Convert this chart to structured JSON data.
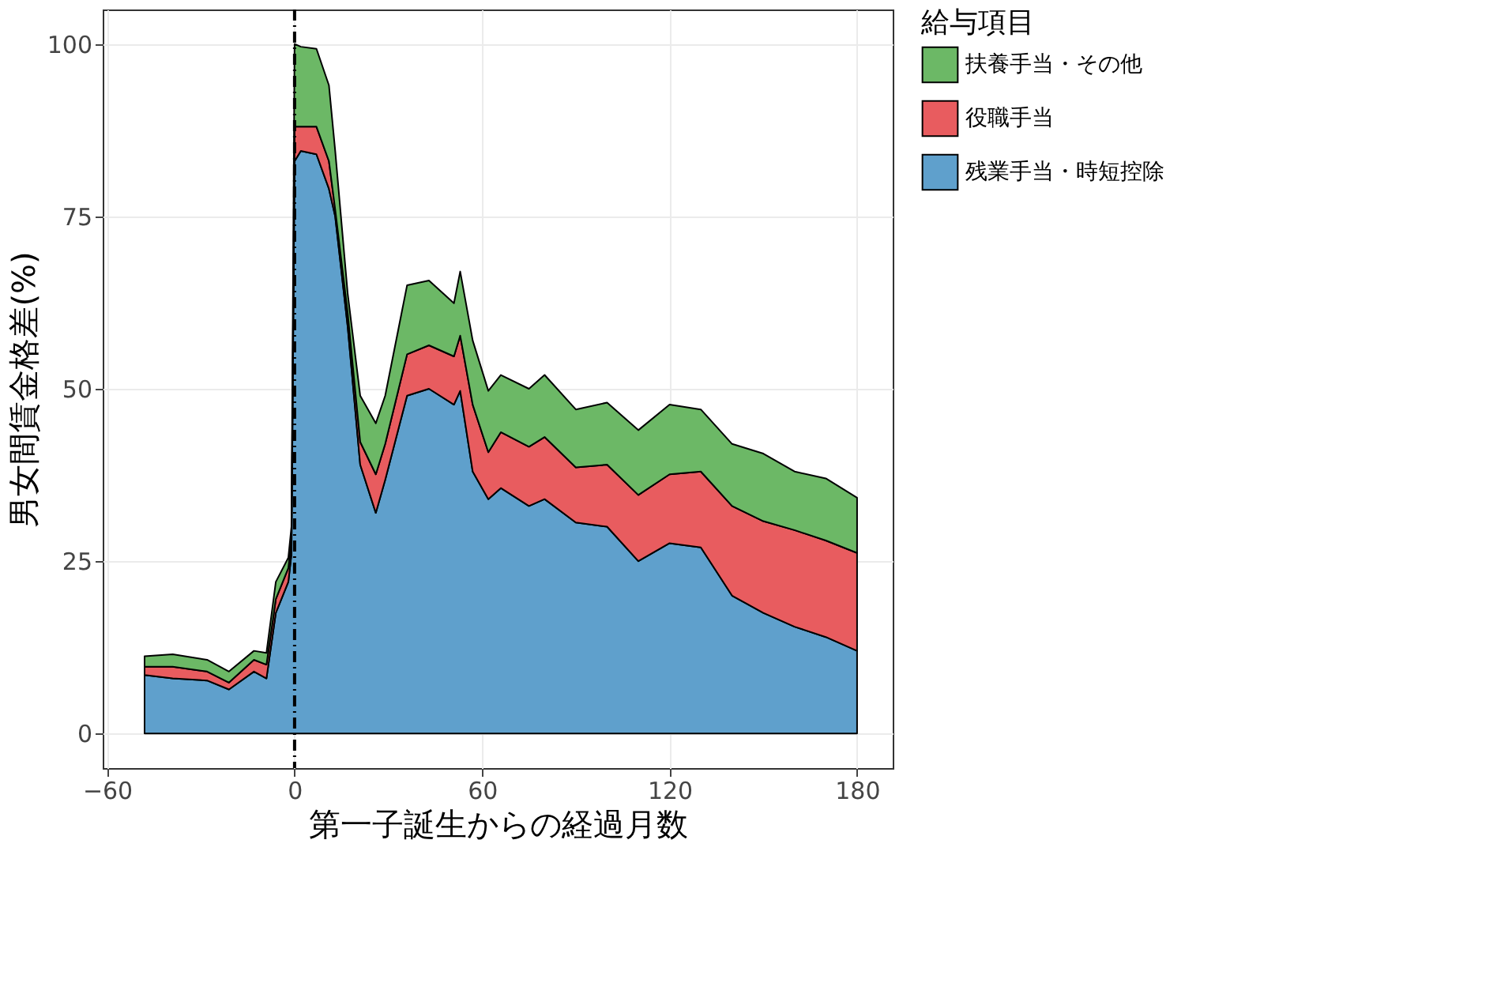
{
  "chart_data": {
    "type": "area",
    "stacked": true,
    "xlabel": "第一子誕生からの経過月数",
    "ylabel": "男女間賃金格差(%)",
    "legend_title": "給与項目",
    "x": [
      -48,
      -39,
      -28,
      -21,
      -13,
      -9,
      -6,
      -2,
      -1,
      0,
      2,
      7,
      11,
      13,
      17,
      21,
      26,
      29,
      36,
      43,
      51,
      53,
      57,
      62,
      66,
      75,
      80,
      90,
      100,
      110,
      120,
      130,
      140,
      150,
      160,
      170,
      180
    ],
    "series": [
      {
        "name": "残業手当・時短控除",
        "color": "#5fa0cc",
        "values": [
          8.5,
          8,
          7.7,
          6.4,
          9,
          8,
          17.5,
          22,
          26,
          83,
          84.5,
          84,
          79,
          75,
          59,
          39,
          32,
          36.8,
          49,
          50,
          47.7,
          49.7,
          38,
          34,
          35.6,
          33,
          34,
          30.6,
          30,
          25,
          27.6,
          27,
          20,
          17.5,
          15.5,
          14,
          12
        ]
      },
      {
        "name": "役職手当",
        "color": "#e85c5f",
        "values": [
          1.2,
          1.7,
          1.3,
          1.0,
          1.7,
          2.0,
          2.0,
          2.0,
          2.0,
          5,
          3.5,
          4,
          4,
          1,
          2,
          3.3,
          5.6,
          5.2,
          6,
          6.3,
          7,
          8,
          9.7,
          6.8,
          8.1,
          8.6,
          9,
          8,
          9,
          9.6,
          10,
          11,
          13,
          13.3,
          14,
          14,
          14.2
        ]
      },
      {
        "name": "扶養手当・その他",
        "color": "#6cb866",
        "values": [
          1.5,
          1.8,
          1.7,
          1.6,
          1.3,
          1.7,
          2.5,
          1.5,
          2,
          12,
          11.6,
          11.3,
          11,
          8.5,
          2.8,
          6.7,
          7.4,
          7,
          10,
          9.4,
          7.7,
          9.3,
          9.3,
          8.9,
          8.3,
          8.4,
          9,
          8.4,
          9,
          9.4,
          10.1,
          9,
          9,
          9.8,
          8.5,
          9,
          8
        ]
      }
    ],
    "xlim": [
      -61.4,
      191.4
    ],
    "ylim": [
      -5,
      105
    ],
    "xticks": [
      -60,
      0,
      60,
      120,
      180
    ],
    "yticks": [
      0,
      25,
      50,
      75,
      100
    ],
    "ref_lines": [
      {
        "axis": "x",
        "value": 0,
        "color": "#000000",
        "line_style": "dashed"
      }
    ],
    "grid": true,
    "legend": "right"
  }
}
